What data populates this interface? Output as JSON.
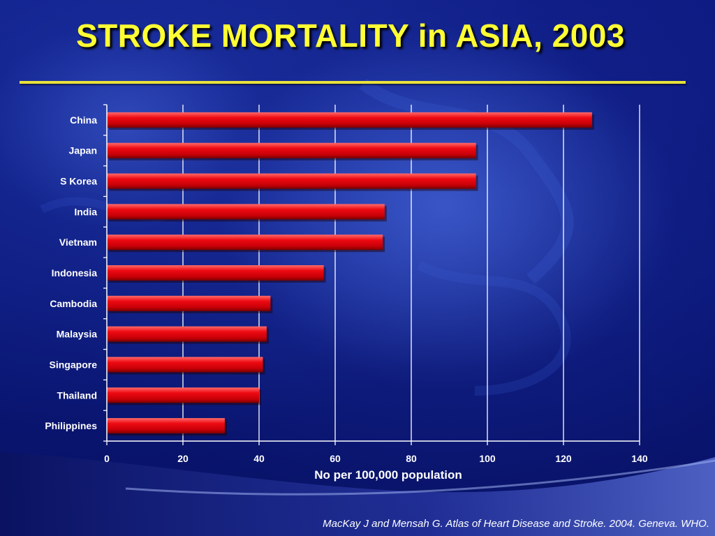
{
  "slide": {
    "title": "STROKE MORTALITY in ASIA, 2003",
    "source": "MacKay J and Mensah G. Atlas of Heart Disease and Stroke. 2004.  Geneva.  WHO."
  },
  "colors": {
    "background": "#0d1a82",
    "title": "#ffff33",
    "rule": "#e8e23a",
    "bar": "#e0000a",
    "bar_highlight": "#ff5a5a",
    "bar_shadow": "#7a0000",
    "text": "#ffffff"
  },
  "chart_data": {
    "type": "bar",
    "orientation": "horizontal",
    "categories": [
      "China",
      "Japan",
      "S Korea",
      "India",
      "Vietnam",
      "Indonesia",
      "Cambodia",
      "Malaysia",
      "Singapore",
      "Thailand",
      "Philippines"
    ],
    "values": [
      127.5,
      97,
      97,
      73,
      72.5,
      57,
      43,
      42,
      41,
      40,
      31
    ],
    "title": "",
    "xlabel": "No per 100,000 population",
    "ylabel": "",
    "xlim": [
      0,
      140
    ],
    "xticks": [
      0,
      20,
      40,
      60,
      80,
      100,
      120,
      140
    ],
    "grid": "vertical"
  }
}
